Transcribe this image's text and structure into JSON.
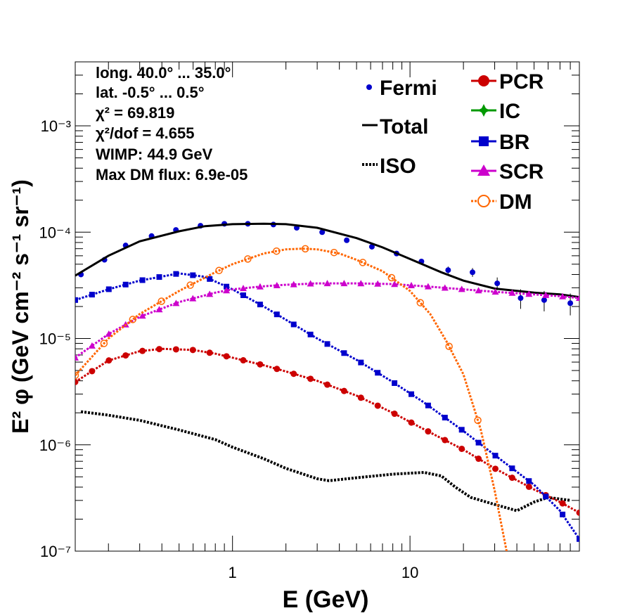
{
  "chart_data": {
    "type": "scatter",
    "xlabel": "E (GeV)",
    "ylabel": "E² φ (GeV cm⁻² s⁻¹ sr⁻¹)",
    "xscale": "log",
    "yscale": "log",
    "xlim": [
      0.13,
      90
    ],
    "ylim": [
      1e-07,
      0.004
    ],
    "x_ticks": [
      "1",
      "10"
    ],
    "y_ticks": [
      "10⁻⁷",
      "10⁻⁶",
      "10⁻⁵",
      "10⁻⁴",
      "10⁻³"
    ],
    "grid": false,
    "info": [
      "long. 40.0° ... 35.0°",
      "lat. -0.5° ... 0.5°",
      "χ² = 69.819",
      "χ²/dof = 4.655",
      "WIMP: 44.9 GeV",
      "Max DM flux: 6.9e-05"
    ],
    "legend": [
      {
        "label": "Fermi",
        "color": "#0000cc",
        "marker": "dot"
      },
      {
        "label": "Total",
        "color": "#000000",
        "marker": "line"
      },
      {
        "label": "ISO",
        "color": "#000000",
        "marker": "dotted"
      },
      {
        "label": "PCR",
        "color": "#cc0000",
        "marker": "circle"
      },
      {
        "label": "IC",
        "color": "#009900",
        "marker": "cross"
      },
      {
        "label": "BR",
        "color": "#0000cc",
        "marker": "square"
      },
      {
        "label": "SCR",
        "color": "#cc00cc",
        "marker": "triangle"
      },
      {
        "label": "DM",
        "color": "#ff6600",
        "marker": "open-circle"
      }
    ],
    "series": [
      {
        "name": "Fermi",
        "color": "#0000cc",
        "points": [
          [
            0.14,
            4e-05
          ],
          [
            0.19,
            5.5e-05
          ],
          [
            0.25,
            7.5e-05
          ],
          [
            0.35,
            9.2e-05
          ],
          [
            0.48,
            0.000105
          ],
          [
            0.66,
            0.000115
          ],
          [
            0.9,
            0.00012
          ],
          [
            1.22,
            0.00012
          ],
          [
            1.7,
            0.000118
          ],
          [
            2.3,
            0.00011
          ],
          [
            3.2,
            0.0001
          ],
          [
            4.4,
            8.4e-05
          ],
          [
            6.1,
            7.3e-05
          ],
          [
            8.4,
            6.3e-05
          ],
          [
            11.6,
            5.3e-05
          ],
          [
            16.4,
            4.4e-05
          ],
          [
            22.5,
            4.2e-05
          ],
          [
            31.0,
            3.3e-05
          ],
          [
            42.0,
            2.4e-05
          ],
          [
            57.0,
            2.3e-05
          ],
          [
            80.0,
            2.15e-05
          ]
        ],
        "yerr": [
          1e-06,
          1.5e-06,
          2e-06,
          2e-06,
          3e-06,
          3e-06,
          3e-06,
          3e-06,
          3e-06,
          3e-06,
          3e-06,
          2.5e-06,
          2e-06,
          2.5e-06,
          3e-06,
          3.5e-06,
          4e-06,
          4.5e-06,
          5e-06,
          5e-06,
          5e-06
        ]
      },
      {
        "name": "Total",
        "color": "#000000",
        "points": [
          [
            0.13,
            3.9e-05
          ],
          [
            0.2,
            6e-05
          ],
          [
            0.3,
            8.2e-05
          ],
          [
            0.5,
            0.000102
          ],
          [
            0.7,
            0.000114
          ],
          [
            1.0,
            0.000119
          ],
          [
            1.5,
            0.00012
          ],
          [
            2.0,
            0.000119
          ],
          [
            3.0,
            0.00011
          ],
          [
            5.0,
            8.8e-05
          ],
          [
            7.0,
            7.2e-05
          ],
          [
            10.0,
            5.6e-05
          ],
          [
            15.0,
            4.2e-05
          ],
          [
            20.0,
            3.5e-05
          ],
          [
            30.0,
            2.95e-05
          ],
          [
            50.0,
            2.7e-05
          ],
          [
            70.0,
            2.6e-05
          ],
          [
            90.0,
            2.45e-05
          ]
        ]
      },
      {
        "name": "ISO",
        "color": "#000000",
        "points": [
          [
            0.14,
            2.05e-06
          ],
          [
            0.2,
            1.9e-06
          ],
          [
            0.3,
            1.7e-06
          ],
          [
            0.5,
            1.38e-06
          ],
          [
            0.8,
            1.12e-06
          ],
          [
            1.0,
            9.5e-07
          ],
          [
            1.5,
            7.4e-07
          ],
          [
            2.0,
            6e-07
          ],
          [
            3.0,
            4.8e-07
          ],
          [
            3.5,
            4.6e-07
          ],
          [
            5.0,
            4.9e-07
          ],
          [
            8.0,
            5.3e-07
          ],
          [
            12.0,
            5.5e-07
          ],
          [
            15.0,
            5.1e-07
          ],
          [
            18.0,
            4e-07
          ],
          [
            22.0,
            3.2e-07
          ],
          [
            30.0,
            2.75e-07
          ],
          [
            40.0,
            2.4e-07
          ],
          [
            50.0,
            2.9e-07
          ],
          [
            60.0,
            3.2e-07
          ],
          [
            80.0,
            3e-07
          ]
        ]
      },
      {
        "name": "PCR",
        "color": "#cc0000",
        "points": [
          [
            0.13,
            3.9e-06
          ],
          [
            0.2,
            6.2e-06
          ],
          [
            0.3,
            7.6e-06
          ],
          [
            0.4,
            8e-06
          ],
          [
            0.6,
            7.8e-06
          ],
          [
            0.8,
            7.2e-06
          ],
          [
            1.0,
            6.6e-06
          ],
          [
            1.5,
            5.6e-06
          ],
          [
            2.0,
            4.9e-06
          ],
          [
            3.0,
            4e-06
          ],
          [
            5.0,
            2.9e-06
          ],
          [
            8.0,
            2e-06
          ],
          [
            12.0,
            1.4e-06
          ],
          [
            20.0,
            9e-07
          ],
          [
            30.0,
            6e-07
          ],
          [
            50.0,
            3.8e-07
          ],
          [
            70.0,
            2.9e-07
          ],
          [
            90.0,
            2.3e-07
          ]
        ]
      },
      {
        "name": "BR",
        "color": "#0000cc",
        "points": [
          [
            0.13,
            2.3e-05
          ],
          [
            0.2,
            2.9e-05
          ],
          [
            0.3,
            3.5e-05
          ],
          [
            0.5,
            4.1e-05
          ],
          [
            0.7,
            3.8e-05
          ],
          [
            1.0,
            2.9e-05
          ],
          [
            1.5,
            2e-05
          ],
          [
            2.0,
            1.5e-05
          ],
          [
            3.0,
            1e-05
          ],
          [
            5.0,
            6.3e-06
          ],
          [
            8.0,
            3.9e-06
          ],
          [
            12.0,
            2.5e-06
          ],
          [
            20.0,
            1.35e-06
          ],
          [
            30.0,
            8e-07
          ],
          [
            50.0,
            4.2e-07
          ],
          [
            70.0,
            2.4e-07
          ],
          [
            90.0,
            1.3e-07
          ]
        ]
      },
      {
        "name": "SCR",
        "color": "#cc00cc",
        "points": [
          [
            0.13,
            6.6e-06
          ],
          [
            0.2,
            1.1e-05
          ],
          [
            0.3,
            1.6e-05
          ],
          [
            0.5,
            2.2e-05
          ],
          [
            0.8,
            2.7e-05
          ],
          [
            1.0,
            2.9e-05
          ],
          [
            1.5,
            3.1e-05
          ],
          [
            2.0,
            3.2e-05
          ],
          [
            3.0,
            3.3e-05
          ],
          [
            5.0,
            3.3e-05
          ],
          [
            8.0,
            3.25e-05
          ],
          [
            12.0,
            3.1e-05
          ],
          [
            20.0,
            2.9e-05
          ],
          [
            30.0,
            2.75e-05
          ],
          [
            50.0,
            2.6e-05
          ],
          [
            70.0,
            2.5e-05
          ],
          [
            90.0,
            2.4e-05
          ]
        ]
      },
      {
        "name": "DM",
        "color": "#ff6600",
        "points": [
          [
            0.13,
            4.5e-06
          ],
          [
            0.2,
            1e-05
          ],
          [
            0.3,
            1.7e-05
          ],
          [
            0.5,
            2.8e-05
          ],
          [
            0.8,
            4.2e-05
          ],
          [
            1.0,
            5e-05
          ],
          [
            1.5,
            6.3e-05
          ],
          [
            2.0,
            6.9e-05
          ],
          [
            2.5,
            7e-05
          ],
          [
            3.0,
            6.9e-05
          ],
          [
            4.0,
            6.3e-05
          ],
          [
            5.0,
            5.5e-05
          ],
          [
            7.0,
            4.3e-05
          ],
          [
            10.0,
            2.8e-05
          ],
          [
            13.0,
            1.7e-05
          ],
          [
            16.0,
            9.5e-06
          ],
          [
            20.0,
            4.6e-06
          ],
          [
            25.0,
            1.4e-06
          ],
          [
            30.0,
            3.7e-07
          ],
          [
            35.0,
            1e-07
          ]
        ]
      }
    ]
  }
}
